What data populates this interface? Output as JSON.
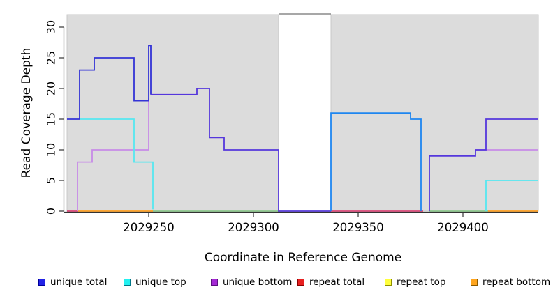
{
  "figure": {
    "x_title": "Coordinate in Reference Genome",
    "y_title": "Read Coverage Depth"
  },
  "axes": {
    "x": {
      "label": "Coordinate in Reference Genome",
      "ticks": [
        2029250,
        2029300,
        2029350,
        2029400
      ],
      "range": [
        2029211,
        2029436
      ]
    },
    "y": {
      "label": "Read Coverage Depth",
      "ticks": [
        0,
        5,
        10,
        15,
        20,
        25,
        30
      ],
      "range": [
        0,
        32
      ]
    }
  },
  "palette": {
    "panel_bg": "#DCDCDC",
    "panel_border": "#C9C9C9",
    "gap_top_line": "#8A8A8A",
    "axis_line": "#333333",
    "text": "#000000"
  },
  "legend": {
    "items": [
      {
        "label": "unique total",
        "fill": "#2222E6",
        "border": "#000099"
      },
      {
        "label": "unique top",
        "fill": "#22F0F0",
        "border": "#007788"
      },
      {
        "label": "unique bottom",
        "fill": "#A428D4",
        "border": "#5C1080"
      },
      {
        "label": "repeat total",
        "fill": "#E82020",
        "border": "#8B0000"
      },
      {
        "label": "repeat top",
        "fill": "#FFFF3C",
        "border": "#909000"
      },
      {
        "label": "repeat bottom",
        "fill": "#FFA51E",
        "border": "#8B5A00"
      }
    ]
  },
  "chart_data": {
    "type": "line",
    "subtype": "step-coverage",
    "title": "",
    "xlabel": "Coordinate in Reference Genome",
    "ylabel": "Read Coverage Depth",
    "xlim": [
      2029211,
      2029436
    ],
    "ylim": [
      0,
      32
    ],
    "grid": false,
    "legend_position": "bottom",
    "panel_gap_x": [
      2029312,
      2029337
    ],
    "series": [
      {
        "name": "unique total",
        "color": "#2222E6",
        "steps": [
          [
            2029211,
            15
          ],
          [
            2029217,
            23
          ],
          [
            2029224,
            25
          ],
          [
            2029243,
            18
          ],
          [
            2029250,
            27
          ],
          [
            2029251,
            19
          ],
          [
            2029273,
            20
          ],
          [
            2029279,
            12
          ],
          [
            2029286,
            10
          ],
          [
            2029312,
            0
          ],
          [
            2029337,
            16
          ],
          [
            2029375,
            15
          ],
          [
            2029380,
            0
          ],
          [
            2029384,
            9
          ],
          [
            2029406,
            10
          ],
          [
            2029411,
            15
          ],
          [
            2029436,
            15
          ]
        ]
      },
      {
        "name": "unique top",
        "color": "#22F0F0",
        "steps": [
          [
            2029211,
            15
          ],
          [
            2029243,
            8
          ],
          [
            2029252,
            0
          ],
          [
            2029337,
            16
          ],
          [
            2029375,
            15
          ],
          [
            2029380,
            0
          ],
          [
            2029411,
            5
          ],
          [
            2029436,
            5
          ]
        ]
      },
      {
        "name": "unique bottom",
        "color": "#A428D4",
        "steps": [
          [
            2029211,
            0
          ],
          [
            2029216,
            8
          ],
          [
            2029223,
            10
          ],
          [
            2029250,
            19
          ],
          [
            2029273,
            20
          ],
          [
            2029279,
            12
          ],
          [
            2029286,
            10
          ],
          [
            2029312,
            0
          ],
          [
            2029384,
            9
          ],
          [
            2029406,
            10
          ],
          [
            2029436,
            10
          ]
        ]
      },
      {
        "name": "repeat total",
        "color": "#E82020",
        "steps": [
          [
            2029211,
            0
          ],
          [
            2029436,
            0
          ]
        ]
      },
      {
        "name": "repeat top",
        "color": "#FFFF3C",
        "steps": [
          [
            2029211,
            0
          ],
          [
            2029436,
            0
          ]
        ]
      },
      {
        "name": "repeat bottom",
        "color": "#FFA51E",
        "steps": [
          [
            2029216,
            0
          ],
          [
            2029252,
            0
          ],
          [
            2029412,
            0
          ],
          [
            2029436,
            0
          ]
        ]
      }
    ],
    "rendered_lines": [
      {
        "name": "baseline-repeat-total-left",
        "color": "#DC4878",
        "points": [
          [
            2029211,
            0
          ],
          [
            2029216,
            0
          ]
        ]
      },
      {
        "name": "baseline-repeat-bottom-left",
        "color": "#FF9E1E",
        "points": [
          [
            2029216,
            0
          ],
          [
            2029252,
            0
          ]
        ]
      },
      {
        "name": "baseline-top-strand-left",
        "color": "#8CC88C",
        "points": [
          [
            2029252,
            0
          ],
          [
            2029312,
            0
          ]
        ]
      },
      {
        "name": "baseline-repeat-total-mid",
        "color": "#DC4878",
        "points": [
          [
            2029337,
            0
          ],
          [
            2029381,
            0
          ]
        ]
      },
      {
        "name": "baseline-top-strand-right",
        "color": "#8CC88C",
        "points": [
          [
            2029384,
            0
          ],
          [
            2029412,
            0
          ]
        ]
      },
      {
        "name": "baseline-repeat-bottom-right",
        "color": "#FF9E1E",
        "points": [
          [
            2029412,
            0
          ],
          [
            2029436,
            0
          ]
        ]
      },
      {
        "name": "unique-bottom-left",
        "color": "#C78BE8",
        "points": [
          [
            2029216,
            0
          ],
          [
            2029216,
            8
          ],
          [
            2029223,
            8
          ],
          [
            2029223,
            10
          ],
          [
            2029250,
            10
          ],
          [
            2029250,
            18.5
          ]
        ]
      },
      {
        "name": "unique-bottom-right",
        "color": "#C78BE8",
        "points": [
          [
            2029406,
            10
          ],
          [
            2029436,
            10
          ]
        ]
      },
      {
        "name": "unique-top-left",
        "color": "#55E8F0",
        "points": [
          [
            2029217,
            15
          ],
          [
            2029243,
            15
          ],
          [
            2029243,
            8
          ],
          [
            2029252,
            8
          ],
          [
            2029252,
            0.3
          ]
        ]
      },
      {
        "name": "unique-top-right",
        "color": "#55E8F0",
        "points": [
          [
            2029411,
            0
          ],
          [
            2029411,
            5
          ],
          [
            2029436,
            5
          ]
        ]
      },
      {
        "name": "unique-total-left",
        "color": "#3434D6",
        "points": [
          [
            2029211,
            15
          ],
          [
            2029217,
            15
          ],
          [
            2029217,
            23
          ],
          [
            2029224,
            23
          ],
          [
            2029224,
            25
          ],
          [
            2029243,
            25
          ],
          [
            2029243,
            18
          ],
          [
            2029250,
            18
          ],
          [
            2029250,
            27
          ],
          [
            2029251,
            27
          ],
          [
            2029251,
            19
          ]
        ]
      },
      {
        "name": "unique-total-mid",
        "color": "#5537DC",
        "points": [
          [
            2029251,
            19
          ],
          [
            2029273,
            19
          ],
          [
            2029273,
            20
          ],
          [
            2029279,
            20
          ],
          [
            2029279,
            12
          ],
          [
            2029286,
            12
          ],
          [
            2029286,
            10
          ],
          [
            2029312,
            10
          ],
          [
            2029312,
            0
          ],
          [
            2029337,
            0
          ]
        ]
      },
      {
        "name": "unique-total-after-gap",
        "color": "#1E86F0",
        "points": [
          [
            2029337,
            0
          ],
          [
            2029337,
            16
          ],
          [
            2029375,
            16
          ],
          [
            2029375,
            15
          ],
          [
            2029380,
            15
          ],
          [
            2029380,
            0
          ]
        ]
      },
      {
        "name": "unique-total-right",
        "color": "#5537DC",
        "points": [
          [
            2029384,
            0
          ],
          [
            2029384,
            9
          ],
          [
            2029406,
            9
          ],
          [
            2029406,
            10
          ],
          [
            2029411,
            10
          ],
          [
            2029411,
            15
          ],
          [
            2029436,
            15
          ]
        ]
      }
    ]
  }
}
